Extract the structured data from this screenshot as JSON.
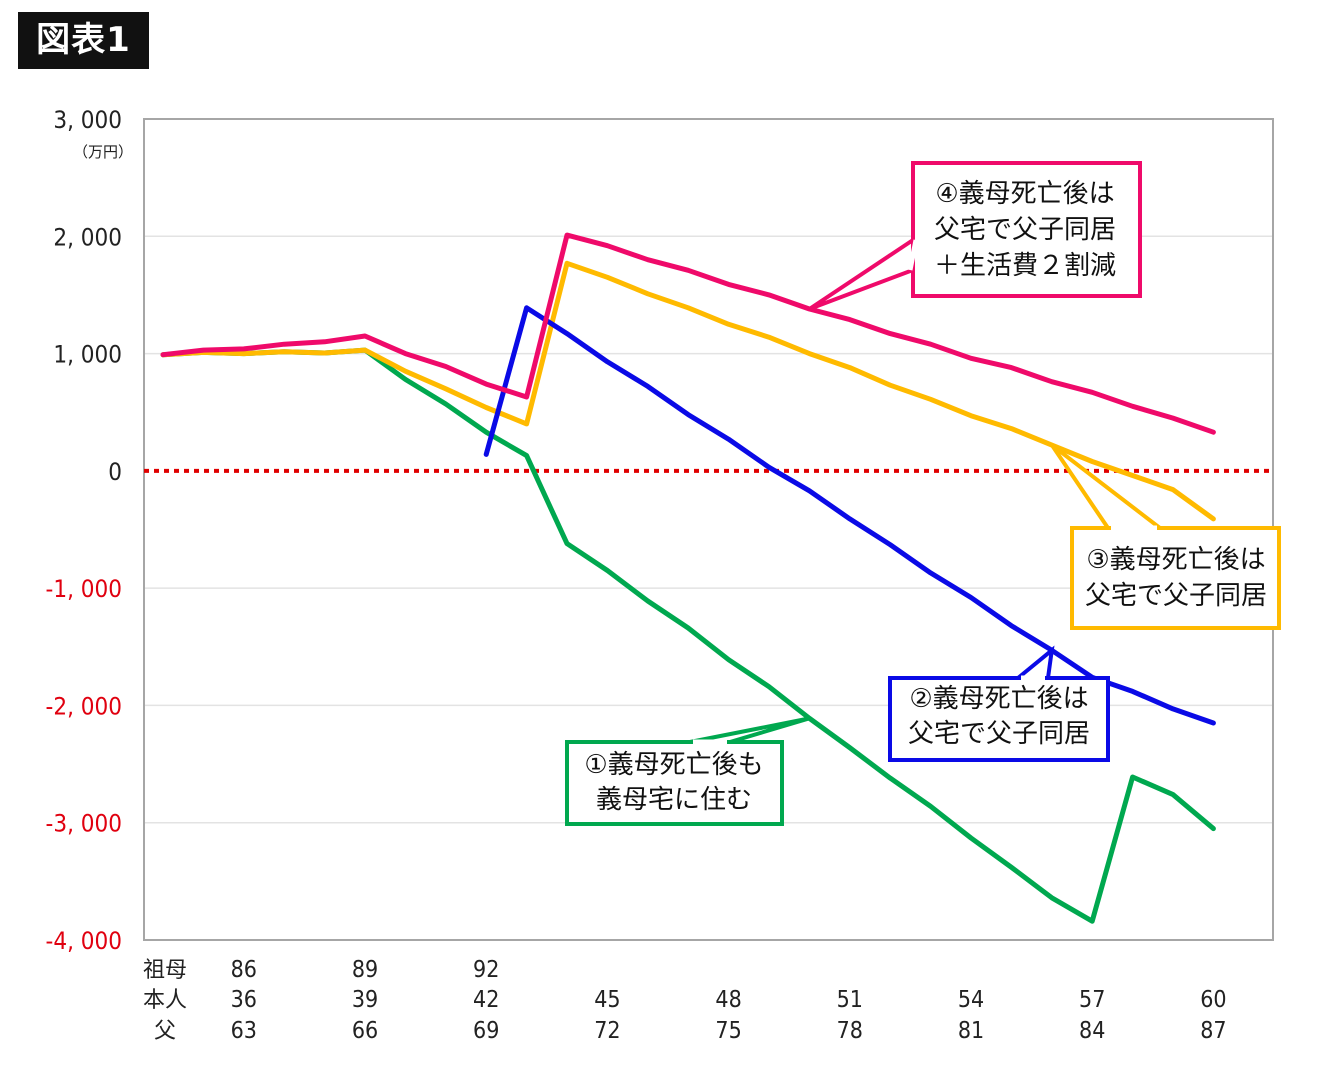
{
  "figure_tag": "図表1",
  "chart_data": {
    "type": "line",
    "unit": "（万円）",
    "ylim": [
      -4000,
      3000
    ],
    "y_ticks": [
      3000,
      2000,
      1000,
      0,
      -1000,
      -2000,
      -3000,
      -4000
    ],
    "y_tick_labels": [
      "3, 000",
      "2, 000",
      "1, 000",
      "0",
      "-1, 000",
      "-2, 000",
      "-3, 000",
      "-4, 000"
    ],
    "negative_tick_color": "#e0000f",
    "zero_line_color": "#e00000",
    "grid": true,
    "x_age_self": [
      34,
      35,
      36,
      37,
      38,
      39,
      40,
      41,
      42,
      43,
      44,
      45,
      46,
      47,
      48,
      49,
      50,
      51,
      52,
      53,
      54,
      55,
      56,
      57,
      58,
      59,
      60
    ],
    "x_rows": [
      {
        "label": "祖母",
        "ticks": [
          {
            "self_age": 36,
            "text": "86"
          },
          {
            "self_age": 39,
            "text": "89"
          },
          {
            "self_age": 42,
            "text": "92"
          }
        ]
      },
      {
        "label": "本人",
        "ticks": [
          {
            "self_age": 36,
            "text": "36"
          },
          {
            "self_age": 39,
            "text": "39"
          },
          {
            "self_age": 42,
            "text": "42"
          },
          {
            "self_age": 45,
            "text": "45"
          },
          {
            "self_age": 48,
            "text": "48"
          },
          {
            "self_age": 51,
            "text": "51"
          },
          {
            "self_age": 54,
            "text": "54"
          },
          {
            "self_age": 57,
            "text": "57"
          },
          {
            "self_age": 60,
            "text": "60"
          }
        ]
      },
      {
        "label": "父",
        "ticks": [
          {
            "self_age": 36,
            "text": "63"
          },
          {
            "self_age": 39,
            "text": "66"
          },
          {
            "self_age": 42,
            "text": "69"
          },
          {
            "self_age": 45,
            "text": "72"
          },
          {
            "self_age": 48,
            "text": "75"
          },
          {
            "self_age": 51,
            "text": "78"
          },
          {
            "self_age": 54,
            "text": "81"
          },
          {
            "self_age": 57,
            "text": "84"
          },
          {
            "self_age": 60,
            "text": "87"
          }
        ]
      }
    ],
    "series": [
      {
        "id": "s1",
        "color": "#00a84f",
        "x": [
          34,
          35,
          36,
          37,
          38,
          39,
          40,
          41,
          42,
          43,
          44,
          45,
          46,
          47,
          48,
          49,
          50,
          51,
          52,
          53,
          54,
          55,
          56,
          57,
          58,
          59,
          60
        ],
        "values": [
          990,
          1010,
          1000,
          1015,
          1005,
          1030,
          780,
          570,
          330,
          130,
          -620,
          -850,
          -1110,
          -1340,
          -1610,
          -1840,
          -2110,
          -2360,
          -2620,
          -2860,
          -3130,
          -3380,
          -3640,
          -3840,
          -2610,
          -2760,
          -3050
        ]
      },
      {
        "id": "s2",
        "color": "#0a0ae6",
        "x": [
          42,
          43,
          44,
          45,
          46,
          47,
          48,
          49,
          50,
          51,
          52,
          53,
          54,
          55,
          56,
          57,
          58,
          59,
          60
        ],
        "values": [
          140,
          1390,
          1170,
          930,
          720,
          480,
          270,
          30,
          -170,
          -410,
          -630,
          -870,
          -1080,
          -1320,
          -1530,
          -1760,
          -1880,
          -2030,
          -2150
        ]
      },
      {
        "id": "s3",
        "color": "#ffba00",
        "x": [
          34,
          35,
          36,
          37,
          38,
          39,
          40,
          41,
          42,
          43,
          44,
          45,
          46,
          47,
          48,
          49,
          50,
          51,
          52,
          53,
          54,
          55,
          56,
          57,
          58,
          59,
          60
        ],
        "values": [
          990,
          1010,
          1000,
          1015,
          1005,
          1030,
          850,
          700,
          540,
          400,
          1770,
          1650,
          1510,
          1390,
          1250,
          1140,
          1000,
          880,
          730,
          610,
          470,
          360,
          220,
          80,
          -40,
          -160,
          -410
        ]
      },
      {
        "id": "s4",
        "color": "#ef0a6a",
        "x": [
          34,
          35,
          36,
          37,
          38,
          39,
          40,
          41,
          42,
          43,
          44,
          45,
          46,
          47,
          48,
          49,
          50,
          51,
          52,
          53,
          54,
          55,
          56,
          57,
          58,
          59,
          60
        ],
        "values": [
          990,
          1030,
          1040,
          1080,
          1100,
          1150,
          1000,
          890,
          740,
          630,
          2010,
          1920,
          1800,
          1710,
          1590,
          1500,
          1380,
          1290,
          1170,
          1080,
          960,
          880,
          760,
          670,
          550,
          450,
          330
        ]
      }
    ],
    "annotations": [
      {
        "series": "s4",
        "lines": [
          "④義母死亡後は",
          "父宅で父子同居",
          "＋生活費２割減"
        ],
        "anchor": {
          "x": 50,
          "y": 1380
        }
      },
      {
        "series": "s3",
        "lines": [
          "③義母死亡後は",
          "父宅で父子同居"
        ],
        "anchor": {
          "x": 56,
          "y": 220
        }
      },
      {
        "series": "s2",
        "lines": [
          "②義母死亡後は",
          "父宅で父子同居"
        ],
        "anchor": {
          "x": 56,
          "y": -1530
        }
      },
      {
        "series": "s1",
        "lines": [
          "①義母死亡後も",
          "義母宅に住む"
        ],
        "anchor": {
          "x": 50,
          "y": -2110
        }
      }
    ]
  }
}
